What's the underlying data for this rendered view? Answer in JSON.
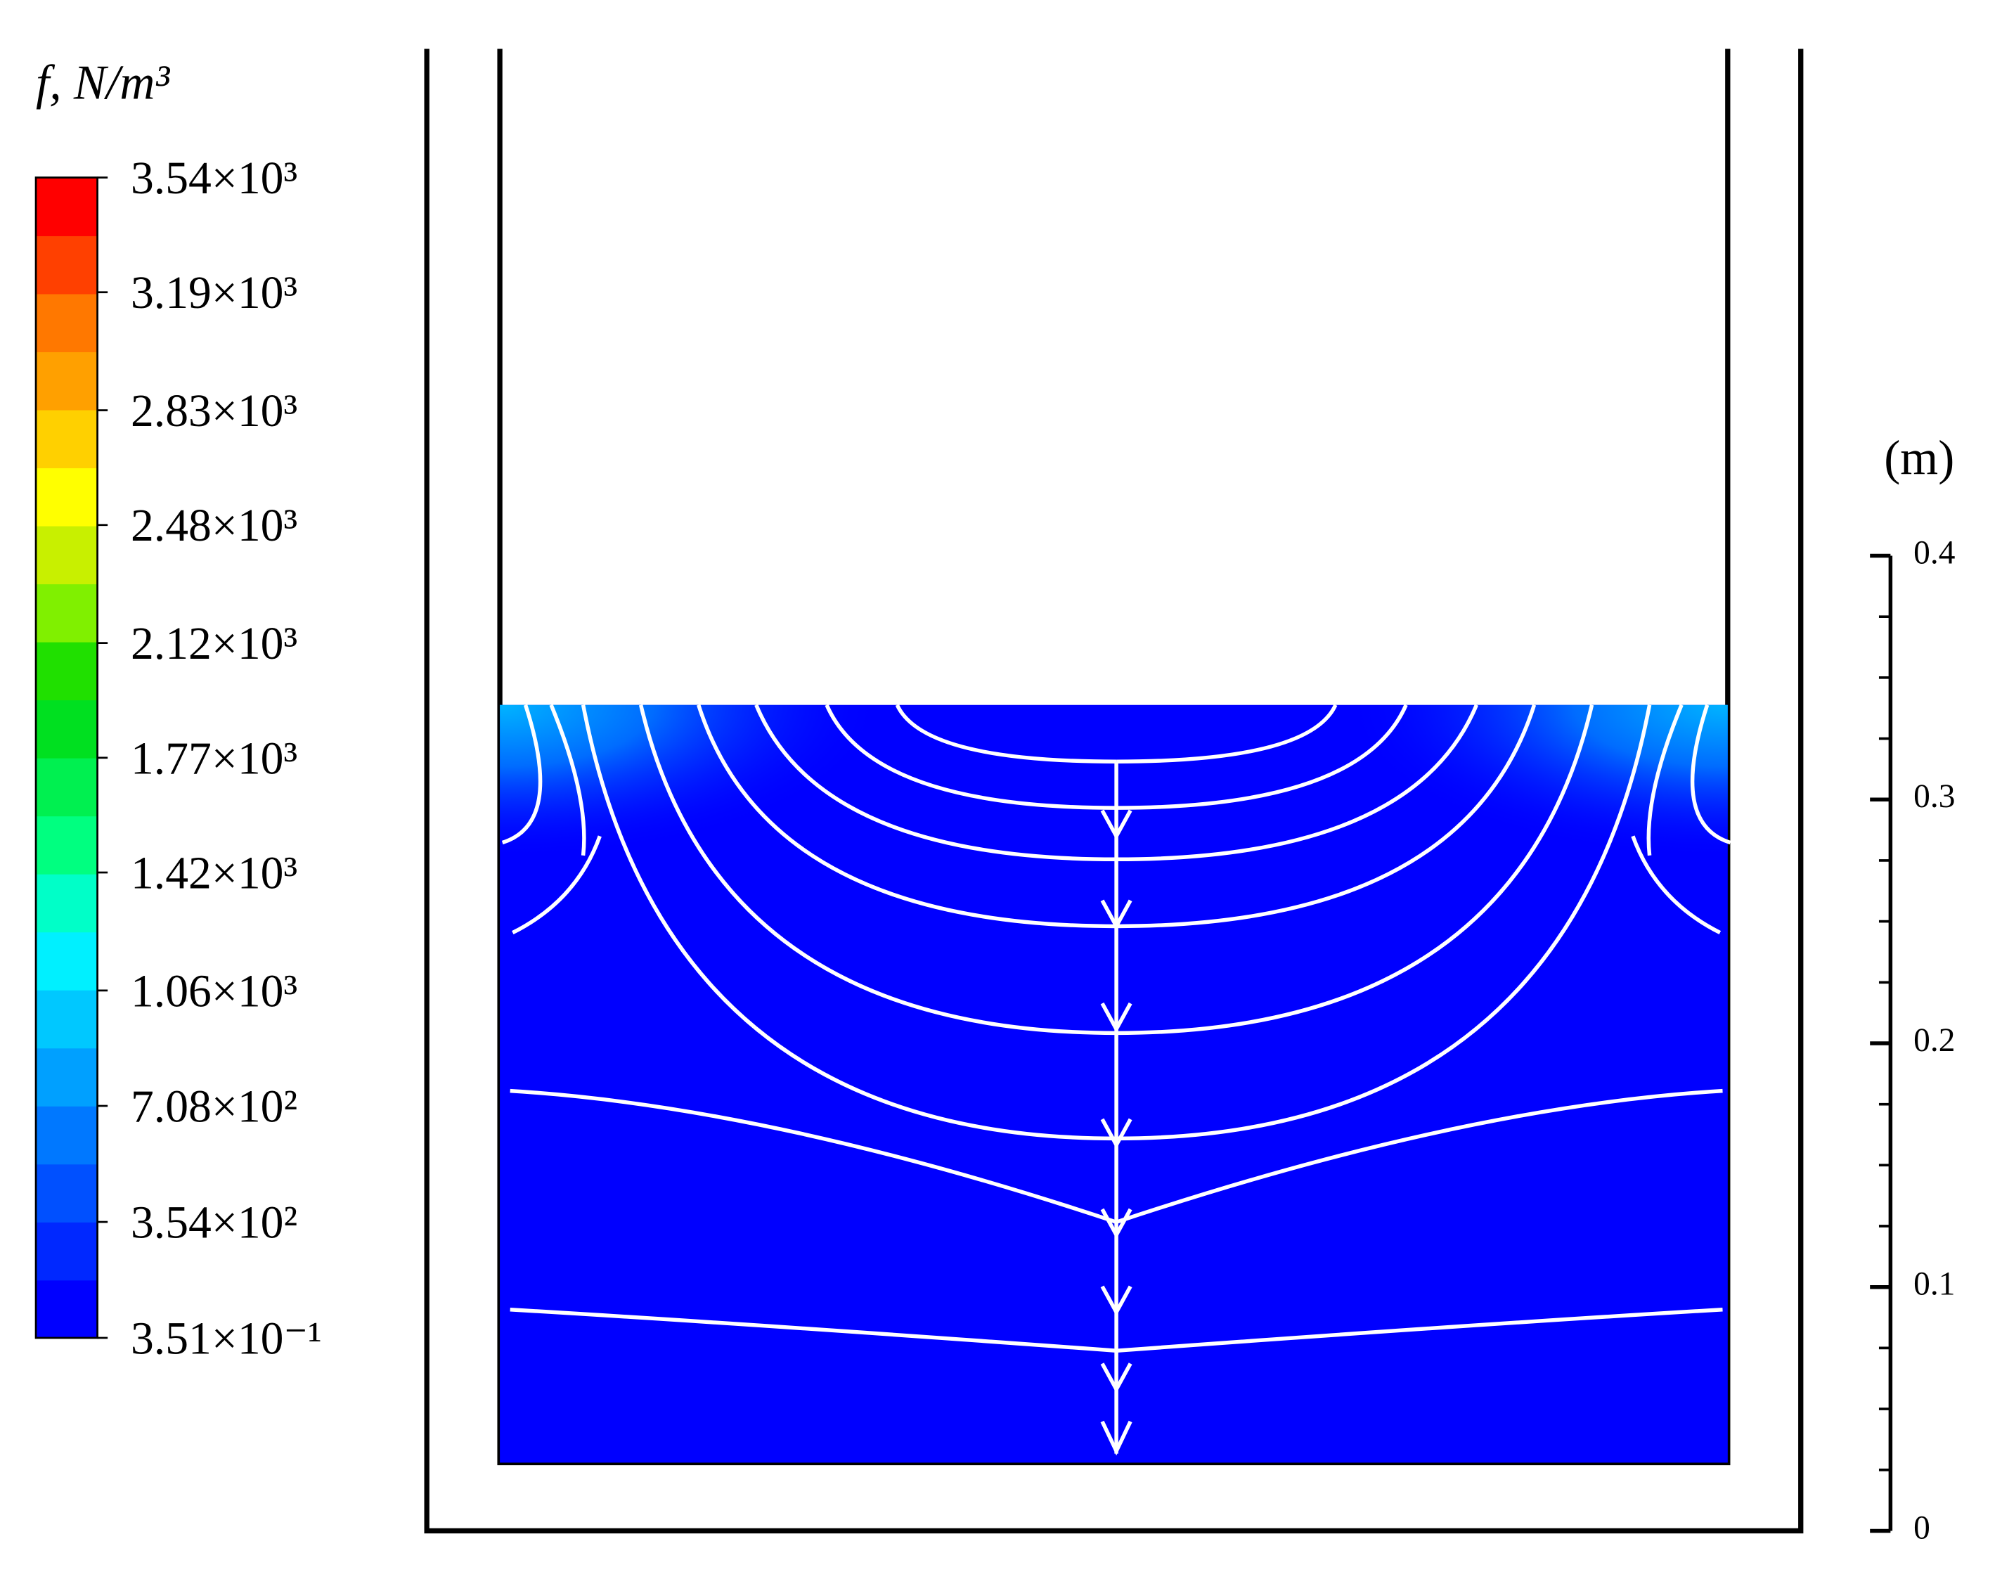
{
  "chart_data": {
    "type": "contour",
    "colorbar": {
      "title": "f, N/m³",
      "lim": [
        0.351,
        3540
      ],
      "ticks": [
        {
          "value": 3540,
          "label": "3.54×10³"
        },
        {
          "value": 3190,
          "label": "3.19×10³"
        },
        {
          "value": 2830,
          "label": "2.83×10³"
        },
        {
          "value": 2480,
          "label": "2.48×10³"
        },
        {
          "value": 2120,
          "label": "2.12×10³"
        },
        {
          "value": 1770,
          "label": "1.77×10³"
        },
        {
          "value": 1420,
          "label": "1.42×10³"
        },
        {
          "value": 1060,
          "label": "1.06×10³"
        },
        {
          "value": 708,
          "label": "7.08×10²"
        },
        {
          "value": 354,
          "label": "3.54×10²"
        },
        {
          "value": 0.351,
          "label": "3.51×10⁻¹"
        }
      ],
      "colors": [
        "#0000ff",
        "#0028ff",
        "#0050ff",
        "#0078ff",
        "#00a0ff",
        "#00c8ff",
        "#00f0ff",
        "#00ffc8",
        "#00ff80",
        "#00f050",
        "#00e020",
        "#20e000",
        "#80f000",
        "#c8f000",
        "#ffff00",
        "#ffd000",
        "#ffa000",
        "#ff7800",
        "#ff4000",
        "#ff0000"
      ]
    },
    "scale": {
      "unit": "(m)",
      "lim": [
        0,
        0.4
      ],
      "ticks": [
        0,
        0.1,
        0.2,
        0.3,
        0.4
      ]
    }
  }
}
